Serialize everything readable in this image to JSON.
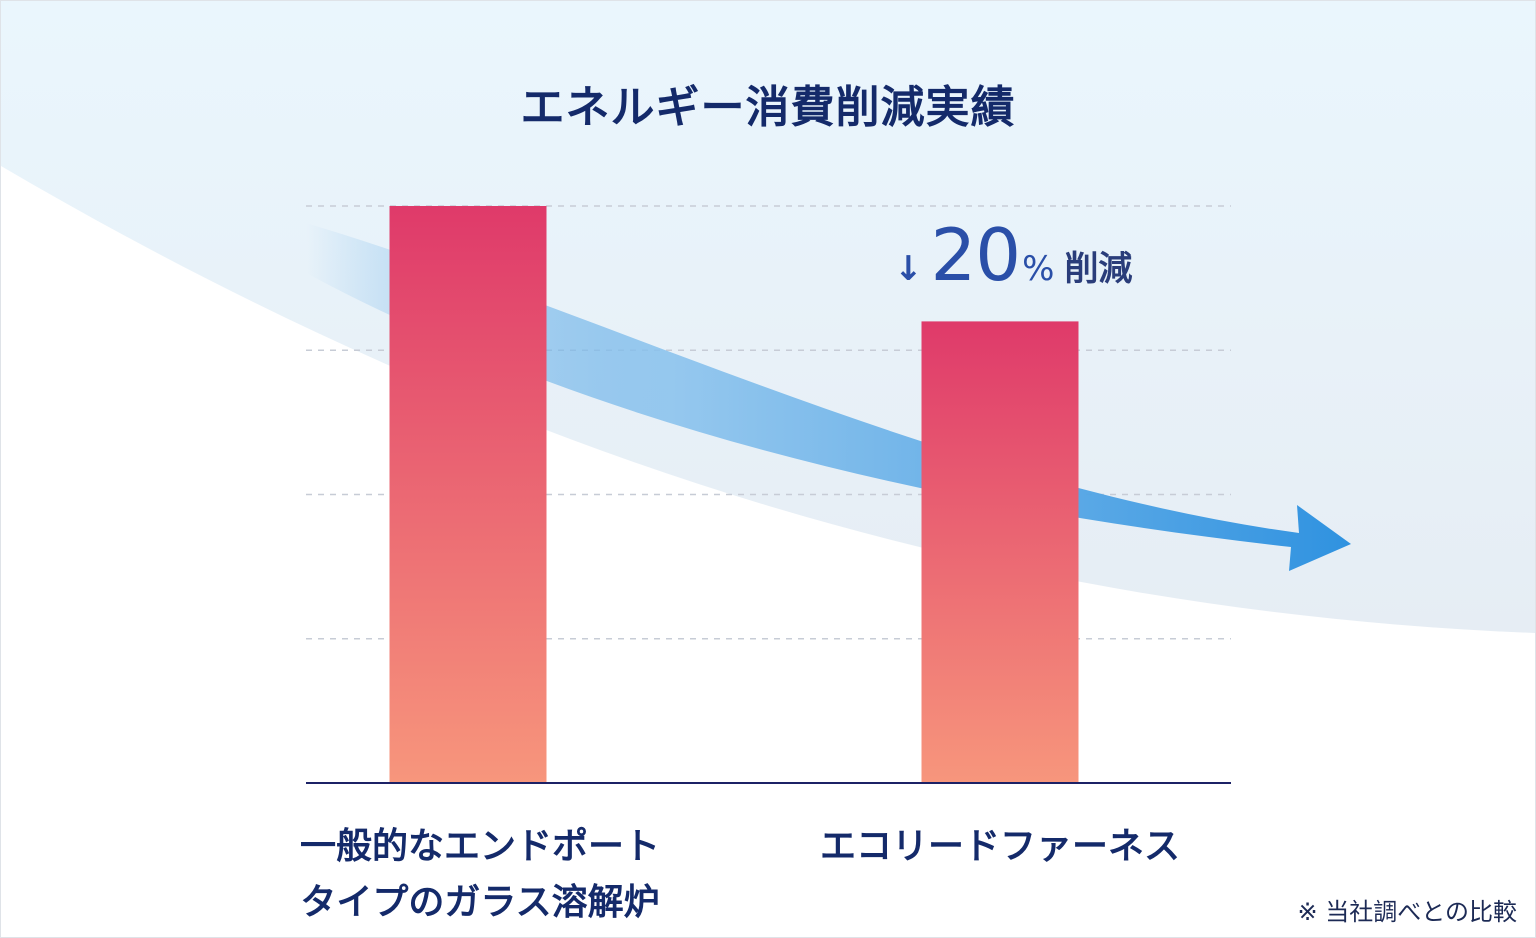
{
  "chart_data": {
    "type": "bar",
    "title": "エネルギー消費削減実績",
    "categories": [
      "一般的なエンドポート\nタイプのガラス溶解炉",
      "エコリードファーネス"
    ],
    "values": [
      100,
      80
    ],
    "ylim": [
      0,
      100
    ],
    "grid": true,
    "annotation": {
      "arrow": "↓",
      "number": "20",
      "unit": "%",
      "word": "削減"
    },
    "colors": {
      "bar_top": "#df3a6a",
      "bar_bottom": "#f7967c",
      "axis": "#1c2266",
      "grid": "#c7ccd6",
      "trend_arrow": "#2f92e0",
      "title": "#142a6a"
    }
  },
  "footnote": "※ 当社調べとの比較"
}
